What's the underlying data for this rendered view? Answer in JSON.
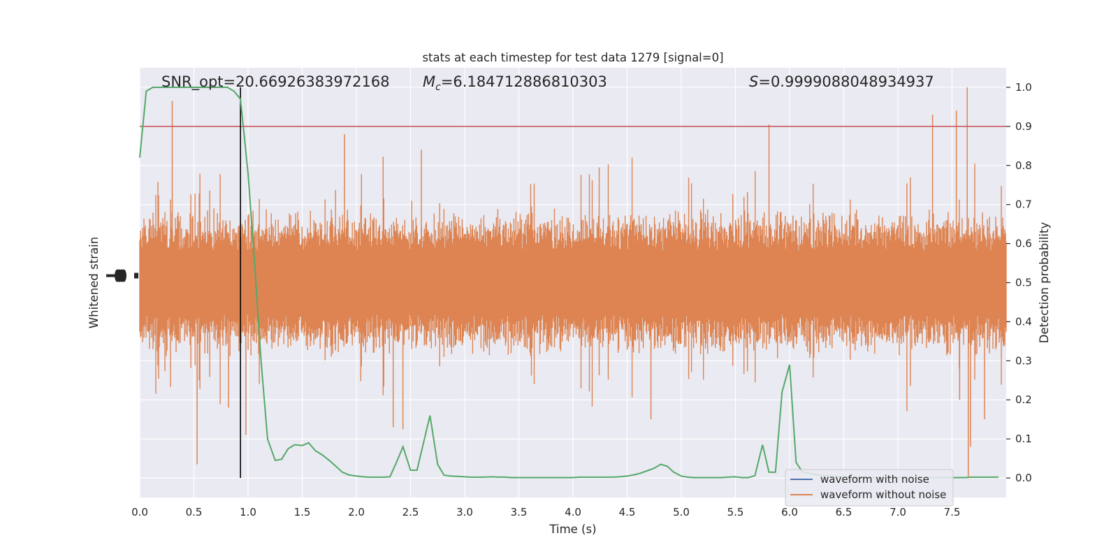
{
  "chart_data": {
    "type": "line",
    "title": "stats at each timestep for test data 1279 [signal=0]",
    "xlabel": "Time (s)",
    "ylabel_left": "Whitened strain",
    "ylabel_right": "Detection probability",
    "xlim": [
      0,
      8
    ],
    "ylim_right": [
      -0.05,
      1.05
    ],
    "grid": true,
    "legend_position": "lower-right",
    "x_ticks": [
      "0.0",
      "0.5",
      "1.0",
      "1.5",
      "2.0",
      "2.5",
      "3.0",
      "3.5",
      "4.0",
      "4.5",
      "5.0",
      "5.5",
      "6.0",
      "6.5",
      "7.0",
      "7.5"
    ],
    "y_ticks_right": [
      "0.0",
      "0.1",
      "0.2",
      "0.3",
      "0.4",
      "0.5",
      "0.6",
      "0.7",
      "0.8",
      "0.9",
      "1.0"
    ],
    "annotations": {
      "snr": "SNR_opt=20.66926383972168",
      "mc_symbol": "M",
      "mc_sub": "c",
      "mc_value": "=6.184712886810303",
      "s_symbol": "S",
      "s_value": "=0.9999088048934937"
    },
    "threshold": 0.9,
    "vertical_marker_x": 0.93,
    "legend": [
      {
        "label": "waveform with noise",
        "color": "#4c72b0"
      },
      {
        "label": "waveform without noise",
        "color": "#dd8452"
      }
    ],
    "colors": {
      "plot_bg": "#eaeaf2",
      "grid": "#ffffff",
      "noise": "#dd8452",
      "probability": "#55a868",
      "threshold": "#c44e52",
      "marker": "#000000"
    },
    "series": [
      {
        "name": "Detection probability",
        "x": [
          0.0,
          0.06,
          0.12,
          0.19,
          0.25,
          0.31,
          0.37,
          0.44,
          0.5,
          0.56,
          0.62,
          0.69,
          0.75,
          0.81,
          0.87,
          0.93,
          1.0,
          1.06,
          1.12,
          1.18,
          1.25,
          1.31,
          1.37,
          1.43,
          1.5,
          1.56,
          1.62,
          1.68,
          1.75,
          1.81,
          1.87,
          1.93,
          2.0,
          2.06,
          2.12,
          2.18,
          2.25,
          2.31,
          2.37,
          2.43,
          2.5,
          2.56,
          2.62,
          2.68,
          2.75,
          2.81,
          2.87,
          2.93,
          3.0,
          3.06,
          3.12,
          3.18,
          3.25,
          3.31,
          3.37,
          3.43,
          3.5,
          3.56,
          3.62,
          3.68,
          3.75,
          3.81,
          3.87,
          3.93,
          4.0,
          4.06,
          4.12,
          4.18,
          4.25,
          4.31,
          4.37,
          4.43,
          4.5,
          4.56,
          4.62,
          4.68,
          4.75,
          4.81,
          4.87,
          4.93,
          5.0,
          5.06,
          5.12,
          5.18,
          5.25,
          5.31,
          5.37,
          5.43,
          5.5,
          5.56,
          5.62,
          5.68,
          5.75,
          5.81,
          5.87,
          5.93,
          6.0,
          6.06,
          6.12,
          6.18,
          6.25,
          6.31,
          6.37,
          6.43,
          6.5,
          6.56,
          6.62,
          6.68,
          6.75,
          6.81,
          6.87,
          6.93,
          7.0,
          7.06,
          7.12,
          7.18,
          7.25,
          7.31,
          7.37,
          7.43,
          7.5,
          7.56,
          7.62,
          7.68,
          7.75,
          7.81,
          7.87,
          7.93
        ],
        "y": [
          0.82,
          0.99,
          1.0,
          1.0,
          1.0,
          1.0,
          1.0,
          1.0,
          1.0,
          1.0,
          1.0,
          1.0,
          1.0,
          1.0,
          0.99,
          0.97,
          0.78,
          0.55,
          0.3,
          0.1,
          0.045,
          0.048,
          0.075,
          0.085,
          0.083,
          0.09,
          0.07,
          0.06,
          0.045,
          0.03,
          0.015,
          0.008,
          0.005,
          0.003,
          0.002,
          0.002,
          0.002,
          0.003,
          0.04,
          0.08,
          0.02,
          0.02,
          0.09,
          0.16,
          0.035,
          0.007,
          0.005,
          0.004,
          0.003,
          0.002,
          0.002,
          0.002,
          0.003,
          0.002,
          0.002,
          0.001,
          0.001,
          0.001,
          0.001,
          0.001,
          0.001,
          0.001,
          0.001,
          0.001,
          0.001,
          0.002,
          0.002,
          0.002,
          0.002,
          0.002,
          0.002,
          0.003,
          0.005,
          0.008,
          0.012,
          0.018,
          0.025,
          0.035,
          0.03,
          0.015,
          0.005,
          0.002,
          0.001,
          0.001,
          0.001,
          0.001,
          0.001,
          0.002,
          0.003,
          0.001,
          0.001,
          0.006,
          0.085,
          0.015,
          0.015,
          0.22,
          0.29,
          0.04,
          0.015,
          0.012,
          0.008,
          0.006,
          0.005,
          0.003,
          0.002,
          0.002,
          0.001,
          0.001,
          0.001,
          0.001,
          0.001,
          0.001,
          0.001,
          0.001,
          0.001,
          0.001,
          0.001,
          0.001,
          0.001,
          0.001,
          0.001,
          0.001,
          0.001,
          0.002,
          0.002,
          0.002,
          0.002,
          0.002
        ]
      },
      {
        "name": "waveform without noise",
        "description_range": "noise band centered at 0.5 (probability-axis equivalent), typical band 0.35 to 0.65, spikes from 0.0 to 1.0",
        "band_center": 0.5,
        "band_half_width": 0.15,
        "spikes": [
          {
            "x": 0.3,
            "y": 0.965
          },
          {
            "x": 0.53,
            "y": 0.035
          },
          {
            "x": 0.82,
            "y": 0.18
          },
          {
            "x": 0.98,
            "y": 0.11
          },
          {
            "x": 1.89,
            "y": 0.88
          },
          {
            "x": 2.34,
            "y": 0.13
          },
          {
            "x": 2.43,
            "y": 0.125
          },
          {
            "x": 2.6,
            "y": 0.84
          },
          {
            "x": 4.72,
            "y": 0.15
          },
          {
            "x": 5.81,
            "y": 0.905
          },
          {
            "x": 7.32,
            "y": 0.93
          },
          {
            "x": 7.54,
            "y": 0.94
          },
          {
            "x": 7.57,
            "y": 0.2
          },
          {
            "x": 7.64,
            "y": 1.0
          },
          {
            "x": 7.65,
            "y": 0.0
          },
          {
            "x": 7.67,
            "y": 0.08
          },
          {
            "x": 7.8,
            "y": 0.15
          }
        ]
      }
    ]
  }
}
